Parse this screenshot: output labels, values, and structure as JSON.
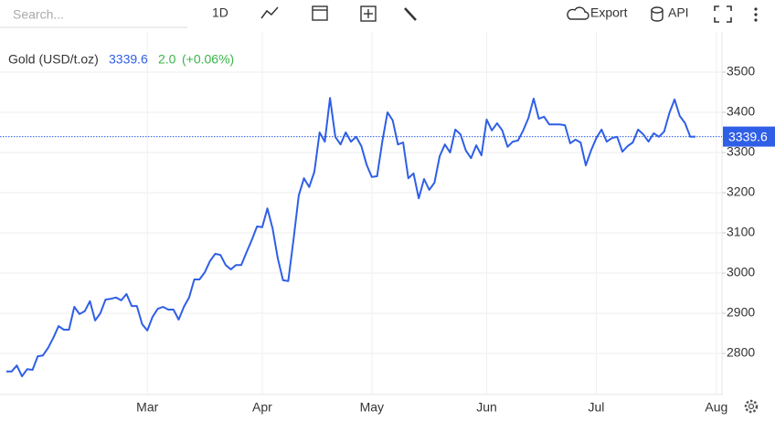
{
  "toolbar": {
    "search_placeholder": "Search...",
    "interval": "1D",
    "export": "Export",
    "api": "API"
  },
  "chart_data": {
    "type": "line",
    "title": "Gold (USD/t.oz)",
    "price": 3339.6,
    "change": "2.0",
    "change_pct": "(+0.06%)",
    "categories": [
      null,
      null,
      null,
      null,
      null,
      null,
      null,
      null,
      null,
      null,
      null,
      null,
      null,
      null,
      null,
      null,
      null,
      null,
      null,
      null,
      null,
      null,
      null,
      null,
      null,
      null,
      null,
      "Mar",
      null,
      null,
      null,
      null,
      null,
      null,
      null,
      null,
      null,
      null,
      null,
      null,
      null,
      null,
      null,
      null,
      null,
      null,
      null,
      null,
      null,
      "Apr",
      null,
      null,
      null,
      null,
      null,
      null,
      null,
      null,
      null,
      null,
      null,
      null,
      null,
      null,
      null,
      null,
      null,
      null,
      null,
      null,
      "May",
      null,
      null,
      null,
      null,
      null,
      null,
      null,
      null,
      null,
      null,
      null,
      null,
      null,
      null,
      null,
      null,
      null,
      null,
      null,
      null,
      null,
      "Jun",
      null,
      null,
      null,
      null,
      null,
      null,
      null,
      null,
      null,
      null,
      null,
      null,
      null,
      null,
      null,
      null,
      null,
      null,
      null,
      null,
      "Jul",
      null,
      null,
      null,
      null,
      null,
      null,
      null,
      null,
      null,
      null,
      null,
      null,
      null,
      null,
      null,
      null,
      null,
      null,
      null,
      null,
      null,
      null,
      "Aug"
    ],
    "series": [
      {
        "name": "Gold",
        "color": "#2f5fe6",
        "values": [
          2755,
          2755,
          2770,
          2743,
          2761,
          2759,
          2793,
          2795,
          2814,
          2839,
          2868,
          2859,
          2859,
          2916,
          2898,
          2905,
          2930,
          2882,
          2900,
          2934,
          2936,
          2939,
          2932,
          2948,
          2918,
          2918,
          2873,
          2857,
          2891,
          2911,
          2916,
          2909,
          2909,
          2884,
          2916,
          2939,
          2984,
          2984,
          3002,
          3030,
          3048,
          3045,
          3020,
          3009,
          3020,
          3020,
          3052,
          3082,
          3116,
          3114,
          3161,
          3111,
          3036,
          2982,
          2980,
          3084,
          3193,
          3236,
          3214,
          3252,
          3350,
          3327,
          3436,
          3339,
          3320,
          3350,
          3327,
          3339,
          3316,
          3270,
          3239,
          3241,
          3327,
          3400,
          3380,
          3320,
          3325,
          3236,
          3248,
          3186,
          3234,
          3207,
          3225,
          3291,
          3320,
          3300,
          3357,
          3345,
          3305,
          3286,
          3318,
          3293,
          3382,
          3355,
          3373,
          3355,
          3314,
          3327,
          3330,
          3355,
          3386,
          3434,
          3384,
          3389,
          3370,
          3370,
          3370,
          3368,
          3323,
          3332,
          3325,
          3268,
          3305,
          3336,
          3357,
          3327,
          3336,
          3339,
          3302,
          3316,
          3325,
          3357,
          3345,
          3327,
          3348,
          3339,
          3352,
          3398,
          3432,
          3391,
          3373,
          3339,
          3339.6,
          null,
          null,
          null,
          null
        ]
      }
    ],
    "ylim": [
      2700,
      3600
    ],
    "yticks": [
      2800,
      2900,
      3000,
      3100,
      3200,
      3300,
      3400,
      3500
    ],
    "grid": true
  }
}
